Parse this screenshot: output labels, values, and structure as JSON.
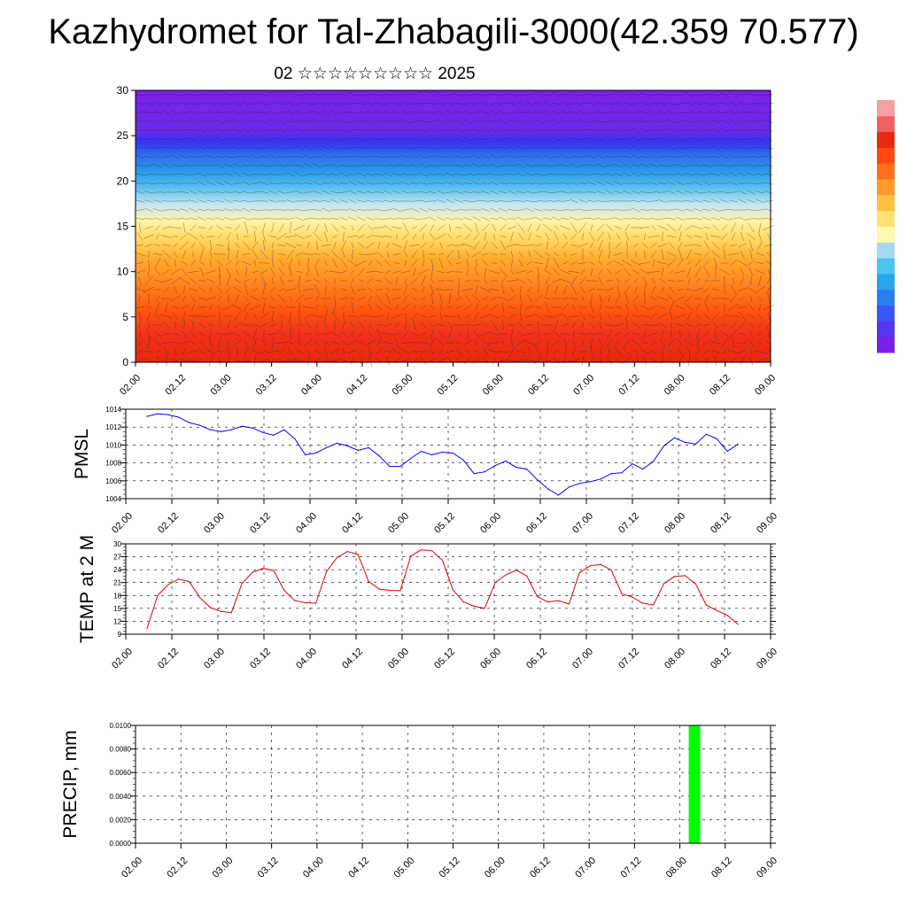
{
  "title": "Kazhydromet for Tal-Zhabagili-3000(42.359 70.577)",
  "subtitle": "02 ☆☆☆☆☆☆☆☆☆ 2025",
  "time_ticks": [
    "02.00",
    "02.12",
    "03.00",
    "03.12",
    "04.00",
    "04.12",
    "05.00",
    "05.12",
    "06.00",
    "06.12",
    "07.00",
    "07.12",
    "08.00",
    "08.12",
    "09.00"
  ],
  "colorbar": {
    "colors": [
      "#7b20e8",
      "#5a35f0",
      "#3c55f5",
      "#2b7ef2",
      "#25a6ee",
      "#4cc3f0",
      "#a5d9f0",
      "#fff9b0",
      "#ffe070",
      "#ffc040",
      "#ff9a28",
      "#ff7018",
      "#ff4a10",
      "#e82a10",
      "#f06060",
      "#f4a0a0"
    ]
  },
  "chart_data": [
    {
      "type": "heatmap",
      "title": "",
      "xlabel": "",
      "ylabel": "",
      "x": [
        "02.00",
        "02.12",
        "03.00",
        "03.12",
        "04.00",
        "04.12",
        "05.00",
        "05.12",
        "06.00",
        "06.12",
        "07.00",
        "07.12",
        "08.00",
        "08.12",
        "09.00"
      ],
      "ylim": [
        0,
        30
      ],
      "yticks": [
        "0",
        "5",
        "10",
        "15",
        "20",
        "25",
        "30"
      ],
      "overlay": "wind vectors"
    },
    {
      "type": "line",
      "ylabel": "PMSL",
      "ylim": [
        1004,
        1014
      ],
      "yticks": [
        "1004",
        "1006",
        "1008",
        "1010",
        "1012",
        "1014"
      ],
      "color": "#0000ff",
      "grid": true,
      "values": [
        1013.2,
        1013.5,
        1013.4,
        1013.1,
        1012.5,
        1012.2,
        1011.7,
        1011.5,
        1011.7,
        1012.1,
        1011.9,
        1011.4,
        1011.1,
        1011.7,
        1010.7,
        1008.9,
        1009.1,
        1009.7,
        1010.2,
        1009.9,
        1009.4,
        1009.7,
        1008.8,
        1007.6,
        1007.6,
        1008.5,
        1009.3,
        1008.9,
        1009.2,
        1009.1,
        1008.3,
        1006.8,
        1007.0,
        1007.7,
        1008.2,
        1007.5,
        1007.3,
        1006.1,
        1005.1,
        1004.4,
        1005.3,
        1005.7,
        1005.9,
        1006.2,
        1006.8,
        1006.9,
        1007.9,
        1007.3,
        1008.2,
        1009.9,
        1010.8,
        1010.3,
        1010.1,
        1011.2,
        1010.7,
        1009.3,
        1010.1
      ]
    },
    {
      "type": "line",
      "ylabel": "TEMP at 2 M",
      "ylim": [
        9,
        30
      ],
      "yticks": [
        "9",
        "12",
        "15",
        "18",
        "21",
        "24",
        "27",
        "30"
      ],
      "color": "#e00000",
      "grid": true,
      "values": [
        10.3,
        18.0,
        20.5,
        21.8,
        21.2,
        17.5,
        15.2,
        14.3,
        14.0,
        20.8,
        23.4,
        24.3,
        23.8,
        19.2,
        16.8,
        16.3,
        16.2,
        23.5,
        26.8,
        28.2,
        27.5,
        21.3,
        19.5,
        19.2,
        19.1,
        27.2,
        28.6,
        28.4,
        26.2,
        19.3,
        16.5,
        15.5,
        15.0,
        21.0,
        22.8,
        23.9,
        22.5,
        17.7,
        16.5,
        16.8,
        16.0,
        23.3,
        24.9,
        25.2,
        23.9,
        18.4,
        17.6,
        16.2,
        15.8,
        20.8,
        22.4,
        22.6,
        20.7,
        15.8,
        14.5,
        13.4,
        11.3
      ]
    },
    {
      "type": "bar",
      "ylabel": "PRECIP, mm",
      "ylim": [
        0,
        0.01
      ],
      "yticks": [
        "0.0000",
        "0.0020",
        "0.0040",
        "0.0060",
        "0.0080",
        "0.0100"
      ],
      "color": "#00ff00",
      "grid": true,
      "categories": [
        "08.00-08.03"
      ],
      "values": [
        0.01
      ]
    }
  ]
}
